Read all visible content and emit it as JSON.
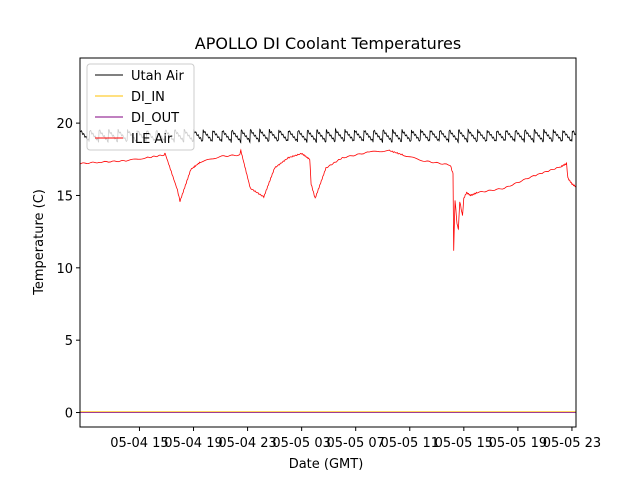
{
  "chart_data": {
    "type": "line",
    "title": "APOLLO DI Coolant Temperatures",
    "xlabel": "Date (GMT)",
    "ylabel": "Temperature (C)",
    "xlim_hours": [
      10.6,
      47.3
    ],
    "ylim": [
      -1,
      24.5
    ],
    "yticks": [
      0,
      5,
      10,
      15,
      20
    ],
    "xtick_hours": [
      15,
      19,
      23,
      27,
      31,
      35,
      39,
      43,
      47
    ],
    "xtick_labels": [
      "05-04 15",
      "05-04 19",
      "05-04 23",
      "05-05 03",
      "05-05 07",
      "05-05 11",
      "05-05 15",
      "05-05 19",
      "05-05 23"
    ],
    "legend_loc": "upper-left",
    "series": [
      {
        "name": "Utah Air",
        "color": "#000000",
        "kind": "sawtooth",
        "base": 19.0,
        "amplitude": 0.8,
        "period_hours": 0.7
      },
      {
        "name": "DI_IN",
        "color": "#ffc000",
        "kind": "constant",
        "value": 0.05
      },
      {
        "name": "DI_OUT",
        "color": "#800080",
        "kind": "constant",
        "value": 0.0
      },
      {
        "name": "ILE Air",
        "color": "#ff0000",
        "kind": "points",
        "x": [
          10.6,
          12,
          14,
          15.5,
          16.8,
          16.9,
          17.8,
          18.0,
          18.8,
          19.5,
          21,
          22.4,
          22.5,
          23.2,
          24.2,
          25.0,
          26,
          27.0,
          27.6,
          27.7,
          28.0,
          28.8,
          30,
          32,
          33.5,
          34.5,
          36,
          38.0,
          38.2,
          38.25,
          38.35,
          38.5,
          38.6,
          38.7,
          38.9,
          39.0,
          39.2,
          39.5,
          40,
          42,
          44,
          46.2,
          46.6,
          46.7,
          47.0,
          47.3
        ],
        "y": [
          17.2,
          17.3,
          17.4,
          17.6,
          17.8,
          17.9,
          15.4,
          14.6,
          16.8,
          17.3,
          17.7,
          17.8,
          18.1,
          15.5,
          14.9,
          16.9,
          17.6,
          17.9,
          17.5,
          15.8,
          14.8,
          16.9,
          17.6,
          18.0,
          18.1,
          17.8,
          17.4,
          17.1,
          16.5,
          11.2,
          14.7,
          13.0,
          12.7,
          14.6,
          13.6,
          14.8,
          15.2,
          15.0,
          15.2,
          15.5,
          16.3,
          17.0,
          17.2,
          16.2,
          15.8,
          15.6
        ]
      }
    ]
  }
}
